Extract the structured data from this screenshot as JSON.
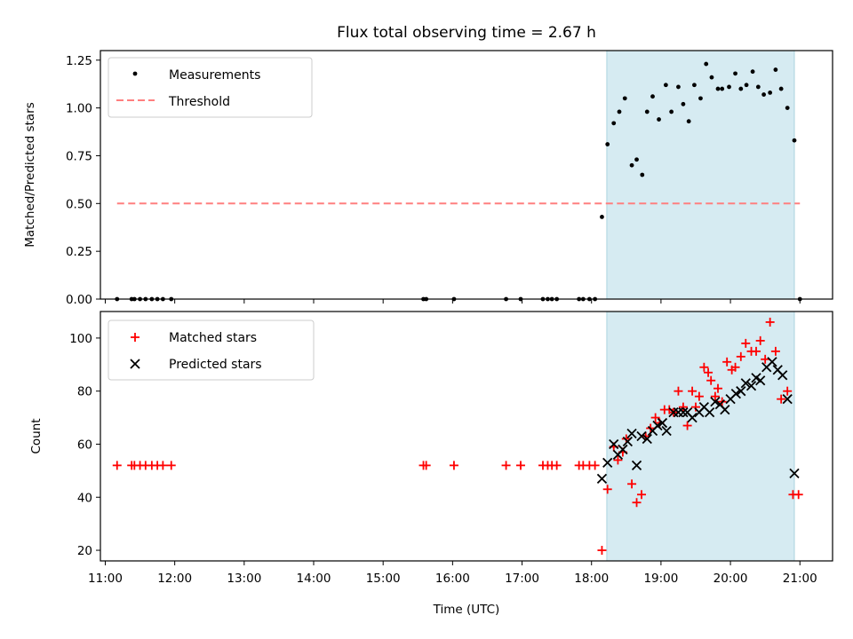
{
  "chart_data": [
    {
      "type": "scatter",
      "title": "Flux total observing time = 2.67 h",
      "xlabel": "",
      "ylabel": "Matched/Predicted stars",
      "ylim": [
        0,
        1.3
      ],
      "xlim": [
        10.93,
        21.47
      ],
      "yticks": [
        0,
        0.25,
        0.5,
        0.75,
        1.0,
        1.25
      ],
      "ytick_labels": [
        "0.00",
        "0.25",
        "0.50",
        "0.75",
        "1.00",
        "1.25"
      ],
      "highlight_span_hours": [
        18.22,
        20.92
      ],
      "legend": {
        "position": "top-left",
        "entries": [
          "Measurements",
          "Threshold"
        ]
      },
      "series": [
        {
          "name": "Measurements",
          "marker": "dot",
          "color": "#000000",
          "x": [
            11.17,
            11.38,
            11.42,
            11.5,
            11.58,
            11.67,
            11.75,
            11.83,
            11.95,
            15.58,
            15.62,
            16.02,
            16.77,
            16.98,
            17.3,
            17.37,
            17.43,
            17.5,
            17.82,
            17.88,
            17.97,
            18.05,
            18.15,
            18.23,
            18.32,
            18.4,
            18.48,
            18.58,
            18.65,
            18.73,
            18.8,
            18.88,
            18.97,
            19.07,
            19.15,
            19.25,
            19.32,
            19.4,
            19.48,
            19.57,
            19.65,
            19.73,
            19.82,
            19.88,
            19.98,
            20.07,
            20.15,
            20.23,
            20.32,
            20.4,
            20.48,
            20.57,
            20.65,
            20.73,
            20.82,
            20.92,
            21.0
          ],
          "y": [
            0,
            0,
            0,
            0,
            0,
            0,
            0,
            0,
            0,
            0,
            0,
            0,
            0,
            0,
            0,
            0,
            0,
            0,
            0,
            0,
            0,
            0,
            0.43,
            0.81,
            0.92,
            0.98,
            1.05,
            0.7,
            0.73,
            0.65,
            0.98,
            1.06,
            0.94,
            1.12,
            0.98,
            1.11,
            1.02,
            0.93,
            1.12,
            1.05,
            1.23,
            1.16,
            1.1,
            1.1,
            1.11,
            1.18,
            1.1,
            1.12,
            1.19,
            1.11,
            1.07,
            1.08,
            1.2,
            1.1,
            1.0,
            0.83,
            0
          ]
        },
        {
          "name": "Threshold",
          "style": "dashed",
          "color": "#ff7f7f",
          "x": [
            11.17,
            21.0
          ],
          "y": [
            0.5,
            0.5
          ]
        }
      ]
    },
    {
      "type": "scatter",
      "title": "",
      "xlabel": "Time (UTC)",
      "ylabel": "Count",
      "ylim": [
        16,
        110
      ],
      "xlim": [
        10.93,
        21.47
      ],
      "yticks": [
        20,
        40,
        60,
        80,
        100
      ],
      "ytick_labels": [
        "20",
        "40",
        "60",
        "80",
        "100"
      ],
      "xticks": [
        11,
        12,
        13,
        14,
        15,
        16,
        17,
        18,
        19,
        20,
        21
      ],
      "xtick_labels": [
        "11:00",
        "12:00",
        "13:00",
        "14:00",
        "15:00",
        "16:00",
        "17:00",
        "18:00",
        "19:00",
        "20:00",
        "21:00"
      ],
      "highlight_span_hours": [
        18.22,
        20.92
      ],
      "legend": {
        "position": "top-left",
        "entries": [
          "Matched stars",
          "Predicted stars"
        ]
      },
      "series": [
        {
          "name": "Matched stars",
          "marker": "plus",
          "color": "#ff0000",
          "x": [
            11.17,
            11.38,
            11.42,
            11.5,
            11.58,
            11.67,
            11.75,
            11.83,
            11.95,
            15.58,
            15.62,
            16.02,
            16.77,
            16.98,
            17.3,
            17.37,
            17.43,
            17.5,
            17.82,
            17.88,
            17.97,
            18.05,
            18.15,
            18.23,
            18.32,
            18.38,
            18.45,
            18.5,
            18.58,
            18.65,
            18.72,
            18.78,
            18.85,
            18.92,
            18.98,
            19.05,
            19.12,
            19.18,
            19.25,
            19.32,
            19.38,
            19.45,
            19.5,
            19.55,
            19.62,
            19.68,
            19.72,
            19.78,
            19.82,
            19.88,
            19.95,
            20.02,
            20.07,
            20.15,
            20.22,
            20.3,
            20.37,
            20.43,
            20.5,
            20.57,
            20.65,
            20.73,
            20.82,
            20.9,
            20.98
          ],
          "y": [
            52,
            52,
            52,
            52,
            52,
            52,
            52,
            52,
            52,
            52,
            52,
            52,
            52,
            52,
            52,
            52,
            52,
            52,
            52,
            52,
            52,
            52,
            20,
            43,
            59,
            54,
            57,
            62,
            45,
            38,
            41,
            63,
            66,
            70,
            68,
            73,
            73,
            72,
            80,
            74,
            67,
            80,
            74,
            78,
            89,
            87,
            84,
            78,
            81,
            76,
            91,
            88,
            89,
            93,
            98,
            95,
            95,
            99,
            92,
            106,
            95,
            77,
            80,
            41,
            41
          ]
        },
        {
          "name": "Predicted stars",
          "marker": "x",
          "color": "#000000",
          "x": [
            18.15,
            18.23,
            18.32,
            18.38,
            18.45,
            18.52,
            18.58,
            18.65,
            18.72,
            18.8,
            18.88,
            18.95,
            19.02,
            19.08,
            19.18,
            19.25,
            19.32,
            19.38,
            19.45,
            19.55,
            19.62,
            19.7,
            19.78,
            19.85,
            19.92,
            20.0,
            20.08,
            20.15,
            20.22,
            20.3,
            20.37,
            20.43,
            20.52,
            20.6,
            20.68,
            20.75,
            20.82,
            20.92
          ],
          "y": [
            47,
            53,
            60,
            56,
            58,
            61,
            64,
            52,
            63,
            62,
            65,
            67,
            68,
            65,
            72,
            72,
            72,
            72,
            70,
            72,
            74,
            72,
            76,
            75,
            73,
            77,
            79,
            80,
            83,
            82,
            85,
            84,
            89,
            91,
            88,
            86,
            77,
            49
          ]
        }
      ]
    }
  ]
}
